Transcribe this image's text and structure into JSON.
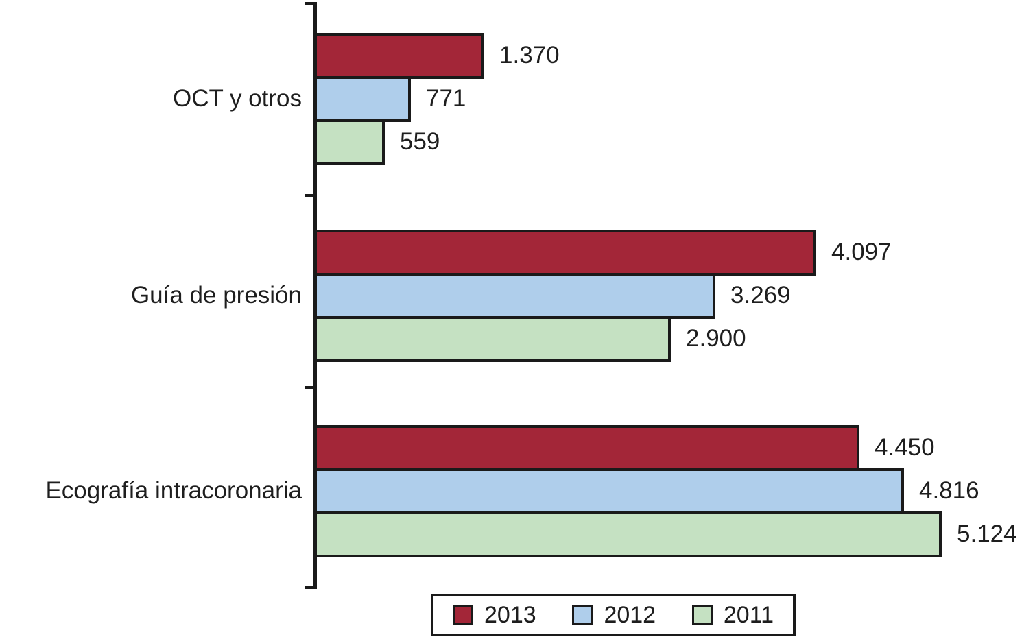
{
  "chart_data": {
    "type": "bar",
    "orientation": "horizontal",
    "title": "",
    "xlabel": "",
    "ylabel": "",
    "grid": false,
    "legend_position": "bottom",
    "value_labels": true,
    "xlim": [
      0,
      5600
    ],
    "categories": [
      "OCT y otros",
      "Guía de presión",
      "Ecografía intracoronaria"
    ],
    "series": [
      {
        "name": "2013",
        "color": "#a32638",
        "values": [
          1370,
          4097,
          4450
        ],
        "value_labels": [
          "1.370",
          "4.097",
          "4.450"
        ]
      },
      {
        "name": "2012",
        "color": "#afceeb",
        "values": [
          771,
          3269,
          4816
        ],
        "value_labels": [
          "771",
          "3.269",
          "4.816"
        ]
      },
      {
        "name": "2011",
        "color": "#c5e1c2",
        "values": [
          559,
          2900,
          5124
        ],
        "value_labels": [
          "559",
          "2.900",
          "5.124"
        ]
      }
    ],
    "ink_color": "#1a1a1a"
  }
}
